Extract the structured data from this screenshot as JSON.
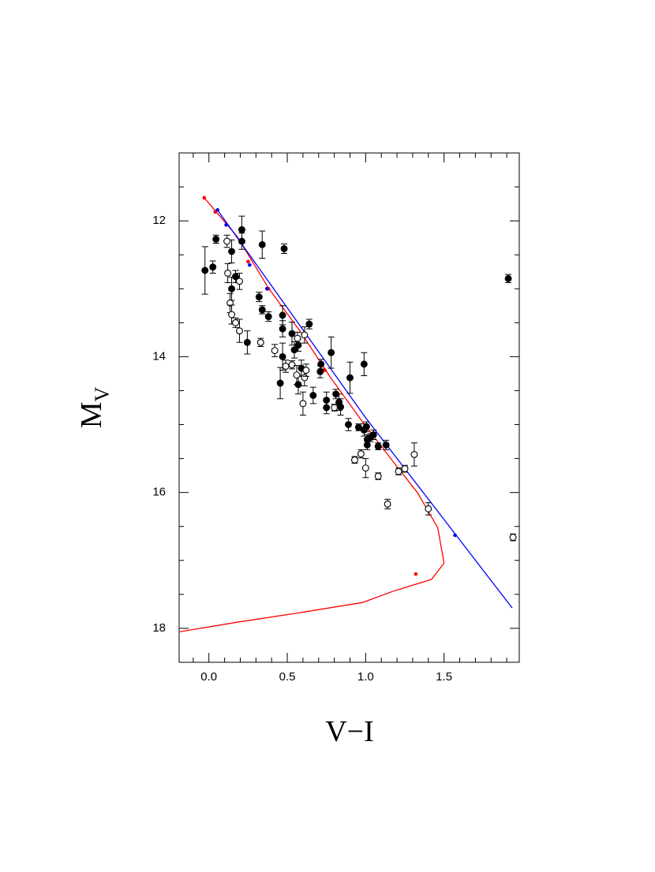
{
  "chart_data": {
    "type": "scatter",
    "xlabel": "V−I",
    "ylabel": "M",
    "ylabel_sub": "V",
    "xlim": [
      -0.19,
      1.98
    ],
    "ylim": [
      18.5,
      11.0
    ],
    "xticks": [
      {
        "value": 0,
        "label": "0.0"
      },
      0.5,
      {
        "value": 1,
        "label": "1.0"
      },
      1.5
    ],
    "yticks": [
      12,
      14,
      16,
      18
    ],
    "xminorticks": [
      -0.1,
      0.1,
      0.2,
      0.3,
      0.4,
      0.6,
      0.7,
      0.8,
      0.9,
      1.1,
      1.2,
      1.3,
      1.4,
      1.6,
      1.7,
      1.8,
      1.9
    ],
    "yminorticks": [
      11.5,
      12.5,
      13,
      13.5,
      14.5,
      15,
      15.5,
      16.5,
      17,
      17.5
    ],
    "series": [
      {
        "kind": "line",
        "color": "#ff0000",
        "x": [
          -0.03,
          0.18,
          0.38,
          0.58,
          0.78,
          0.98,
          1.18,
          1.33,
          1.46,
          1.5,
          1.42,
          1.18,
          0.98,
          0.58,
          0.18,
          -0.185
        ],
        "values": [
          11.66,
          12.23,
          12.99,
          13.62,
          14.32,
          14.96,
          15.56,
          16.0,
          16.52,
          17.04,
          17.28,
          17.45,
          17.62,
          17.77,
          17.91,
          18.05
        ]
      },
      {
        "kind": "dots",
        "color": "#ff0000",
        "x": [
          -0.03,
          0.04,
          0.25,
          0.38,
          0.74,
          1.4,
          1.32
        ],
        "values": [
          11.66,
          11.87,
          12.6,
          13.0,
          14.2,
          16.22,
          17.2
        ]
      },
      {
        "kind": "line",
        "color": "#0000ff",
        "x": [
          0.055,
          1.0,
          1.935
        ],
        "values": [
          11.84,
          14.9,
          17.7
        ]
      },
      {
        "kind": "dots",
        "color": "#0000ff",
        "x": [
          0.055,
          0.11,
          0.26,
          0.37,
          0.72,
          1.57
        ],
        "values": [
          11.84,
          12.06,
          12.65,
          13.0,
          14.2,
          16.63
        ]
      },
      {
        "kind": "errbar",
        "marker": "filled",
        "color": "#000000",
        "x": [
          -0.025,
          0.025,
          0.045,
          0.145,
          0.145,
          0.17,
          0.21,
          0.21,
          0.245,
          0.32,
          0.34,
          0.34,
          0.38,
          0.48,
          0.455,
          0.47,
          0.47,
          0.47,
          0.53,
          0.545,
          0.57,
          0.57,
          0.59,
          0.64,
          0.665,
          0.71,
          0.715,
          0.75,
          0.75,
          0.78,
          0.81,
          0.83,
          0.84,
          0.89,
          0.9,
          0.955,
          0.99,
          0.99,
          1.005,
          1.01,
          1.01,
          1.03,
          1.05,
          1.08,
          1.13,
          1.91
        ],
        "values": [
          12.73,
          12.68,
          12.27,
          13.0,
          12.45,
          12.82,
          12.13,
          12.3,
          13.79,
          13.12,
          12.35,
          13.31,
          13.41,
          12.41,
          14.39,
          14.0,
          13.39,
          13.59,
          13.66,
          13.9,
          14.41,
          13.83,
          14.17,
          13.52,
          14.57,
          14.22,
          14.11,
          14.64,
          14.75,
          13.94,
          14.55,
          14.67,
          14.74,
          15.0,
          14.31,
          15.04,
          14.11,
          15.08,
          15.03,
          15.22,
          15.3,
          15.19,
          15.15,
          15.32,
          15.3,
          12.85
        ],
        "errors": [
          0.35,
          0.09,
          0.06,
          0.17,
          0.17,
          0.09,
          0.2,
          0.12,
          0.17,
          0.07,
          0.2,
          0.06,
          0.07,
          0.07,
          0.23,
          0.2,
          0.14,
          0.12,
          0.17,
          0.12,
          0.14,
          0.09,
          0.12,
          0.07,
          0.12,
          0.09,
          0.07,
          0.12,
          0.09,
          0.23,
          0.07,
          0.12,
          0.12,
          0.09,
          0.23,
          0.05,
          0.17,
          0.09,
          0.07,
          0.07,
          0.07,
          0.06,
          0.07,
          0.05,
          0.07,
          0.06
        ]
      },
      {
        "kind": "errbar",
        "marker": "open",
        "color": "#000000",
        "x": [
          0.115,
          0.195,
          0.195,
          0.12,
          0.135,
          0.145,
          0.17,
          0.33,
          0.42,
          0.49,
          0.53,
          0.56,
          0.6,
          0.61,
          0.62,
          0.61,
          0.565,
          0.8,
          0.93,
          0.97,
          1.0,
          1.08,
          1.14,
          1.21,
          1.25,
          1.31,
          1.4,
          1.94
        ],
        "values": [
          12.3,
          12.89,
          13.62,
          12.77,
          13.21,
          13.38,
          13.5,
          13.79,
          13.91,
          14.14,
          14.12,
          14.27,
          14.69,
          14.31,
          14.2,
          13.68,
          13.73,
          14.75,
          15.52,
          15.43,
          15.64,
          15.76,
          16.17,
          15.69,
          15.65,
          15.44,
          16.24,
          16.66
        ],
        "errors": [
          0.09,
          0.12,
          0.17,
          0.14,
          0.14,
          0.14,
          0.07,
          0.06,
          0.09,
          0.09,
          0.06,
          0.14,
          0.17,
          0.12,
          0.09,
          0.12,
          0.09,
          0.05,
          0.05,
          0.06,
          0.14,
          0.05,
          0.07,
          0.05,
          0.05,
          0.17,
          0.09,
          0.05
        ]
      }
    ]
  }
}
